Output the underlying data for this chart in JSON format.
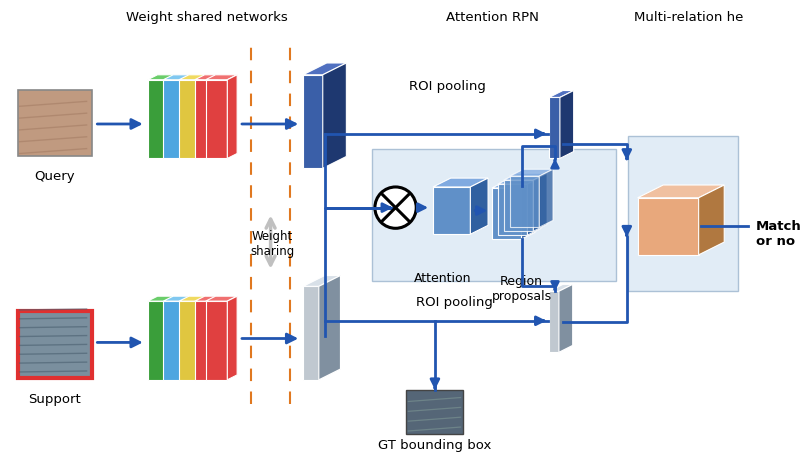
{
  "bg_color": "#ffffff",
  "labels": {
    "support": "Support",
    "query": "Query",
    "weight_shared": "Weight shared networks",
    "weight_sharing": "Weight\nsharing",
    "gt_bbox": "GT bounding box",
    "roi_pooling_top": "ROI pooling",
    "roi_pooling_bot": "ROI pooling",
    "attention": "Attention",
    "region_proposals": "Region\nproposals",
    "attention_rpn": "Attention RPN",
    "multi_relation": "Multi-relation he",
    "match": "Match\nor no"
  },
  "colors": {
    "arrow": "#2155b0",
    "green_dark": "#3a9e3a",
    "green_light": "#6acd6a",
    "blue_layer": "#4da6e0",
    "blue_layer_top": "#80c8f0",
    "yellow_layer": "#e0c640",
    "yellow_layer_top": "#f0da60",
    "red_layer": "#e04040",
    "red_layer_top": "#f07070",
    "gray_feat": "#c0c8d0",
    "gray_feat_dark": "#8090a0",
    "gray_feat_top": "#d8e0e8",
    "blue_3d": "#3a5fa8",
    "blue_3d_dark": "#1e3870",
    "blue_3d_top": "#5070c0",
    "light_blue_bg": "#dce9f5",
    "light_blue_border": "#a0b8d0",
    "peach": "#e8a87c",
    "peach_dark": "#b07840",
    "peach_top": "#f0c0a0",
    "dashed_orange": "#e07820",
    "region_blue": "#6090c8",
    "region_blue_dark": "#3060a0",
    "region_blue_top": "#80aae0",
    "support_border": "#e03030",
    "weight_arrow": "#c0c0c0",
    "xor_color": "#000000"
  }
}
